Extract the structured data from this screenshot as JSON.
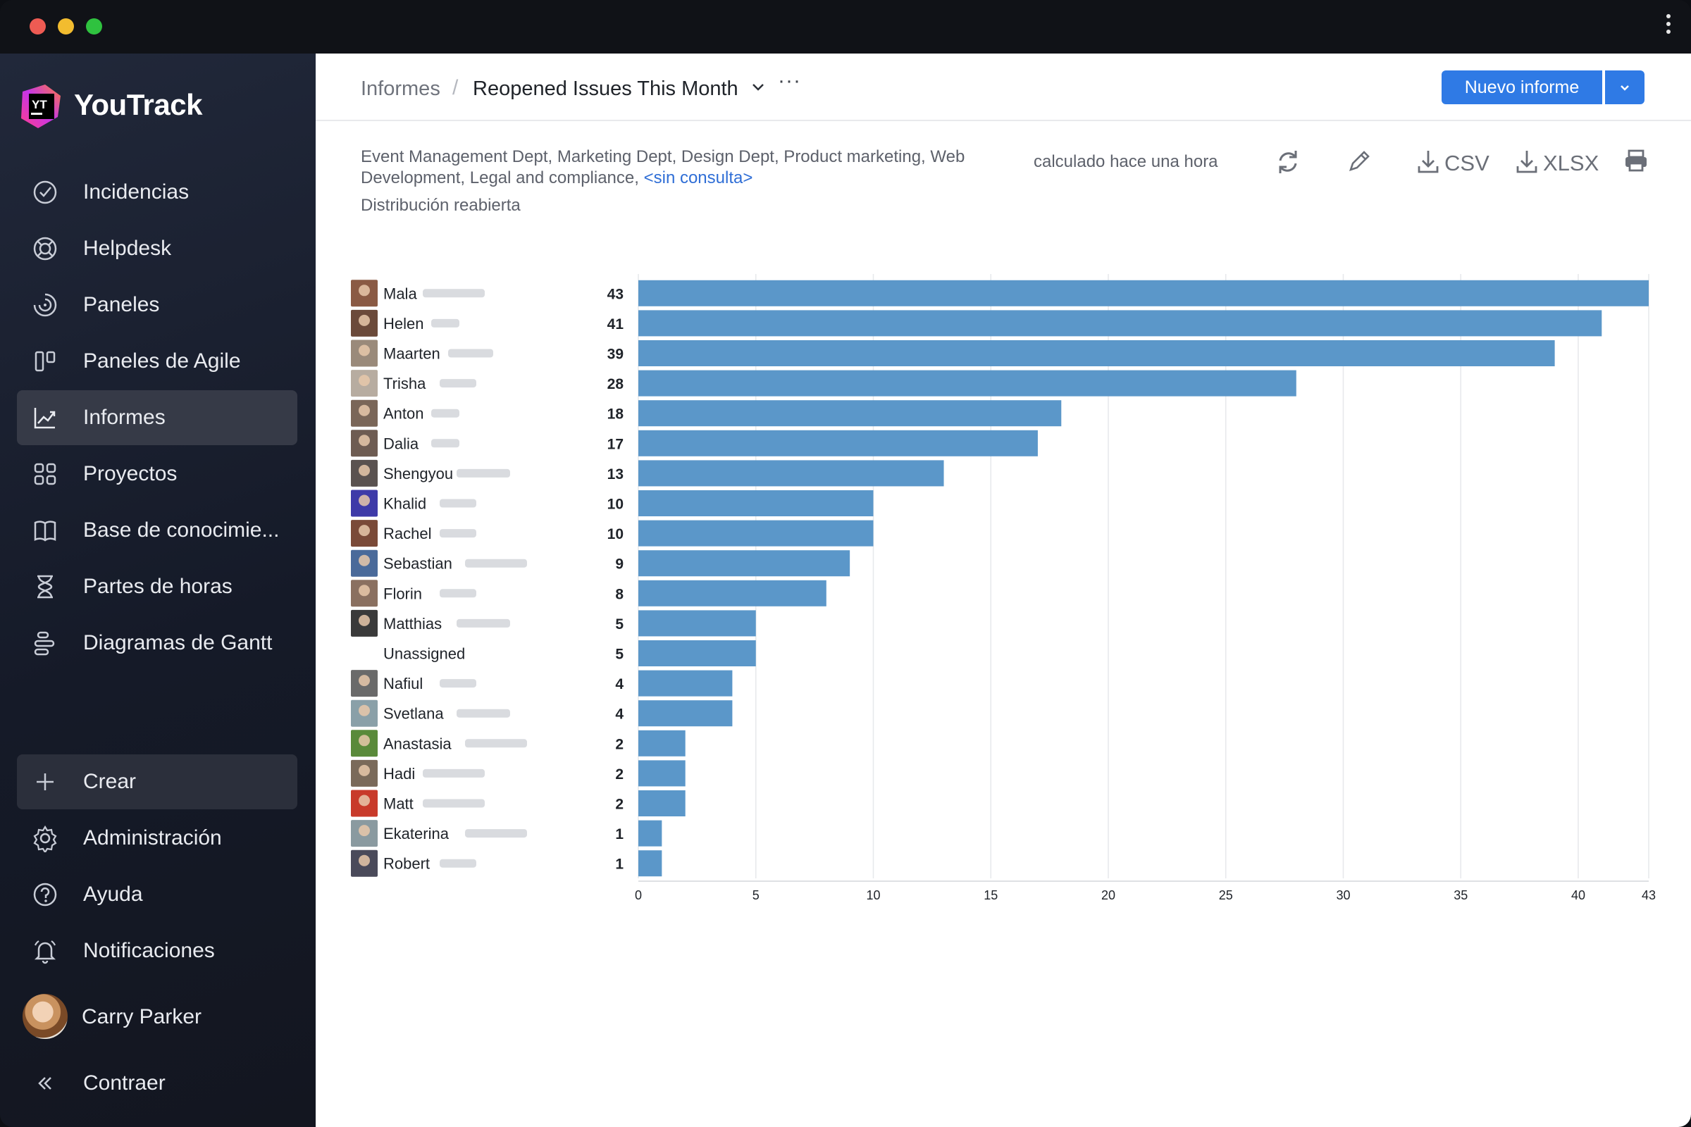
{
  "app": {
    "name": "YouTrack"
  },
  "sidebar": {
    "items": [
      {
        "label": "Incidencias",
        "icon": "check-circle-icon"
      },
      {
        "label": "Helpdesk",
        "icon": "lifebuoy-icon"
      },
      {
        "label": "Paneles",
        "icon": "dashboard-icon"
      },
      {
        "label": "Paneles de Agile",
        "icon": "agile-board-icon"
      },
      {
        "label": "Informes",
        "icon": "reports-icon",
        "active": true
      },
      {
        "label": "Proyectos",
        "icon": "projects-grid-icon"
      },
      {
        "label": "Base de conocimie...",
        "icon": "knowledge-base-icon"
      },
      {
        "label": "Partes de horas",
        "icon": "hourglass-icon"
      },
      {
        "label": "Diagramas de Gantt",
        "icon": "gantt-icon"
      }
    ],
    "bottom": [
      {
        "label": "Crear",
        "icon": "plus-icon"
      },
      {
        "label": "Administración",
        "icon": "gear-icon"
      },
      {
        "label": "Ayuda",
        "icon": "help-icon"
      },
      {
        "label": "Notificaciones",
        "icon": "bell-icon"
      }
    ],
    "user": "Carry Parker",
    "collapse": "Contraer"
  },
  "header": {
    "breadcrumb_root": "Informes",
    "breadcrumb_sep": "/",
    "report_title": "Reopened Issues This Month",
    "more": "···",
    "new_report": "Nuevo informe"
  },
  "report": {
    "scope_text": "Event Management Dept, Marketing Dept, Design Dept, Product marketing, Web Development, Legal and compliance,",
    "no_query": "<sin consulta>",
    "subtitle": "Distribución reabierta",
    "calculated": "calculado hace una hora",
    "csv": "CSV",
    "xlsx": "XLSX"
  },
  "colors": {
    "bar": "#5b97c9",
    "accent": "#2f7ae5",
    "sidebar_active": "#363a47"
  },
  "chart_data": {
    "type": "bar",
    "orientation": "horizontal",
    "title": "Distribución reabierta",
    "categories": [
      "Mala",
      "Helen",
      "Maarten",
      "Trisha",
      "Anton",
      "Dalia",
      "Shengyou",
      "Khalid",
      "Rachel",
      "Sebastian",
      "Florin",
      "Matthias",
      "Unassigned",
      "Nafiul",
      "Svetlana",
      "Anastasia",
      "Hadi",
      "Matt",
      "Ekaterina",
      "Robert"
    ],
    "values": [
      43,
      41,
      39,
      28,
      18,
      17,
      13,
      10,
      10,
      9,
      8,
      5,
      5,
      4,
      4,
      2,
      2,
      2,
      1,
      1
    ],
    "xlim": [
      0,
      43
    ],
    "xticks": [
      0,
      5,
      10,
      15,
      20,
      25,
      30,
      35,
      40,
      43
    ],
    "grid": true
  }
}
